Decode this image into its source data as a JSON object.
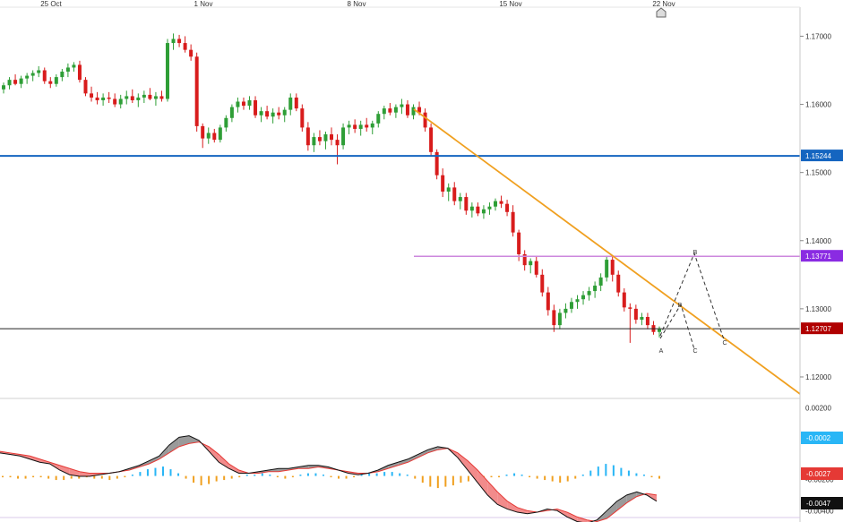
{
  "chart_data": {
    "type": "candlestick",
    "dates": [
      "25 Oct",
      "1 Nov",
      "8 Nov",
      "15 Nov",
      "22 Nov"
    ],
    "ylim": [
      1.1175,
      1.174
    ],
    "y_ticks": [
      "1.17000",
      "1.16000",
      "1.15000",
      "1.14000",
      "1.13000",
      "1.12000"
    ],
    "y_tick_values": [
      1.17,
      1.16,
      1.15,
      1.14,
      1.13,
      1.12
    ],
    "candles_ohlc": [
      [
        1.1622,
        1.1632,
        1.1616,
        1.1628
      ],
      [
        1.1628,
        1.164,
        1.1622,
        1.1636
      ],
      [
        1.1636,
        1.1644,
        1.1628,
        1.163
      ],
      [
        1.163,
        1.1642,
        1.1624,
        1.1638
      ],
      [
        1.1638,
        1.1646,
        1.163,
        1.1642
      ],
      [
        1.1642,
        1.165,
        1.1634,
        1.1646
      ],
      [
        1.1646,
        1.1656,
        1.164,
        1.165
      ],
      [
        1.165,
        1.1654,
        1.163,
        1.1634
      ],
      [
        1.1634,
        1.164,
        1.1624,
        1.163
      ],
      [
        1.163,
        1.1644,
        1.1626,
        1.164
      ],
      [
        1.164,
        1.1652,
        1.1634,
        1.1648
      ],
      [
        1.1648,
        1.166,
        1.164,
        1.1654
      ],
      [
        1.1654,
        1.1662,
        1.1648,
        1.1658
      ],
      [
        1.1658,
        1.1664,
        1.1632,
        1.1636
      ],
      [
        1.1636,
        1.164,
        1.1612,
        1.1616
      ],
      [
        1.1616,
        1.1626,
        1.1604,
        1.161
      ],
      [
        1.161,
        1.1618,
        1.16,
        1.1606
      ],
      [
        1.1606,
        1.1616,
        1.1598,
        1.161
      ],
      [
        1.161,
        1.1618,
        1.1602,
        1.1608
      ],
      [
        1.1608,
        1.1616,
        1.1596,
        1.16
      ],
      [
        1.16,
        1.1614,
        1.1594,
        1.1608
      ],
      [
        1.1608,
        1.162,
        1.16,
        1.1612
      ],
      [
        1.1612,
        1.1622,
        1.1602,
        1.1606
      ],
      [
        1.1606,
        1.1616,
        1.1596,
        1.161
      ],
      [
        1.161,
        1.162,
        1.1602,
        1.1614
      ],
      [
        1.1614,
        1.1624,
        1.1606,
        1.1608
      ],
      [
        1.1608,
        1.1618,
        1.1598,
        1.1612
      ],
      [
        1.1612,
        1.162,
        1.1604,
        1.1608
      ],
      [
        1.1608,
        1.1696,
        1.1604,
        1.169
      ],
      [
        1.169,
        1.1704,
        1.168,
        1.1696
      ],
      [
        1.1696,
        1.1702,
        1.1684,
        1.169
      ],
      [
        1.169,
        1.17,
        1.1676,
        1.168
      ],
      [
        1.168,
        1.1688,
        1.1664,
        1.167
      ],
      [
        1.167,
        1.1676,
        1.156,
        1.1568
      ],
      [
        1.1568,
        1.1572,
        1.1536,
        1.155
      ],
      [
        1.155,
        1.1566,
        1.1542,
        1.1558
      ],
      [
        1.1558,
        1.1564,
        1.1544,
        1.1548
      ],
      [
        1.1548,
        1.157,
        1.1544,
        1.1566
      ],
      [
        1.1566,
        1.1584,
        1.156,
        1.158
      ],
      [
        1.158,
        1.16,
        1.1574,
        1.1596
      ],
      [
        1.1596,
        1.161,
        1.1588,
        1.1604
      ],
      [
        1.1604,
        1.161,
        1.1592,
        1.1598
      ],
      [
        1.1598,
        1.1612,
        1.1592,
        1.1606
      ],
      [
        1.1606,
        1.1612,
        1.158,
        1.1584
      ],
      [
        1.1584,
        1.1596,
        1.1574,
        1.159
      ],
      [
        1.159,
        1.1598,
        1.1578,
        1.1582
      ],
      [
        1.1582,
        1.1594,
        1.1572,
        1.1588
      ],
      [
        1.1588,
        1.1596,
        1.1578,
        1.1584
      ],
      [
        1.1584,
        1.1596,
        1.1574,
        1.1592
      ],
      [
        1.1592,
        1.1616,
        1.1584,
        1.161
      ],
      [
        1.161,
        1.1616,
        1.159,
        1.1594
      ],
      [
        1.1594,
        1.16,
        1.156,
        1.1566
      ],
      [
        1.1566,
        1.1574,
        1.1532,
        1.154
      ],
      [
        1.154,
        1.1558,
        1.153,
        1.1552
      ],
      [
        1.1552,
        1.1562,
        1.154,
        1.1546
      ],
      [
        1.1546,
        1.156,
        1.1534,
        1.1556
      ],
      [
        1.1556,
        1.1566,
        1.154,
        1.1548
      ],
      [
        1.1548,
        1.1556,
        1.1512,
        1.154
      ],
      [
        1.154,
        1.1572,
        1.1534,
        1.1566
      ],
      [
        1.1566,
        1.1576,
        1.1556,
        1.157
      ],
      [
        1.157,
        1.1578,
        1.1558,
        1.1564
      ],
      [
        1.1564,
        1.1576,
        1.1554,
        1.157
      ],
      [
        1.157,
        1.158,
        1.156,
        1.1566
      ],
      [
        1.1566,
        1.1576,
        1.1556,
        1.1572
      ],
      [
        1.1572,
        1.159,
        1.1566,
        1.1586
      ],
      [
        1.1586,
        1.1598,
        1.1578,
        1.1594
      ],
      [
        1.1594,
        1.1602,
        1.1584,
        1.1588
      ],
      [
        1.1588,
        1.16,
        1.158,
        1.1596
      ],
      [
        1.1596,
        1.1608,
        1.1586,
        1.16
      ],
      [
        1.16,
        1.1606,
        1.158,
        1.1584
      ],
      [
        1.1584,
        1.16,
        1.1578,
        1.1596
      ],
      [
        1.1596,
        1.1604,
        1.1584,
        1.1588
      ],
      [
        1.1588,
        1.1594,
        1.156,
        1.1566
      ],
      [
        1.1566,
        1.1572,
        1.1524,
        1.153
      ],
      [
        1.153,
        1.1534,
        1.149,
        1.1496
      ],
      [
        1.1496,
        1.1506,
        1.1464,
        1.1472
      ],
      [
        1.1472,
        1.1484,
        1.1458,
        1.1478
      ],
      [
        1.1478,
        1.1486,
        1.1452,
        1.1458
      ],
      [
        1.1458,
        1.147,
        1.1446,
        1.1464
      ],
      [
        1.1464,
        1.147,
        1.1438,
        1.1444
      ],
      [
        1.1444,
        1.1456,
        1.1434,
        1.145
      ],
      [
        1.145,
        1.1456,
        1.1436,
        1.144
      ],
      [
        1.144,
        1.1452,
        1.1432,
        1.1446
      ],
      [
        1.1446,
        1.1456,
        1.1438,
        1.145
      ],
      [
        1.145,
        1.1462,
        1.1444,
        1.1458
      ],
      [
        1.1458,
        1.1466,
        1.1448,
        1.1454
      ],
      [
        1.1454,
        1.146,
        1.1436,
        1.1442
      ],
      [
        1.1442,
        1.1452,
        1.1406,
        1.1412
      ],
      [
        1.1412,
        1.1416,
        1.137,
        1.138
      ],
      [
        1.138,
        1.1386,
        1.1356,
        1.1364
      ],
      [
        1.1364,
        1.1374,
        1.1352,
        1.137
      ],
      [
        1.137,
        1.1378,
        1.1346,
        1.135
      ],
      [
        1.135,
        1.1358,
        1.1318,
        1.1324
      ],
      [
        1.1324,
        1.1332,
        1.129,
        1.1298
      ],
      [
        1.1298,
        1.1306,
        1.1266,
        1.1276
      ],
      [
        1.1276,
        1.13,
        1.127,
        1.1294
      ],
      [
        1.1294,
        1.1308,
        1.1286,
        1.13
      ],
      [
        1.13,
        1.1316,
        1.1294,
        1.131
      ],
      [
        1.131,
        1.132,
        1.13,
        1.1314
      ],
      [
        1.1314,
        1.1326,
        1.1306,
        1.132
      ],
      [
        1.132,
        1.1332,
        1.1312,
        1.1326
      ],
      [
        1.1326,
        1.134,
        1.1316,
        1.1334
      ],
      [
        1.1334,
        1.1352,
        1.1326,
        1.1346
      ],
      [
        1.1346,
        1.1378,
        1.134,
        1.1372
      ],
      [
        1.1372,
        1.1376,
        1.134,
        1.135
      ],
      [
        1.135,
        1.1356,
        1.1318,
        1.1324
      ],
      [
        1.1324,
        1.133,
        1.1296,
        1.1302
      ],
      [
        1.1302,
        1.1308,
        1.125,
        1.13
      ],
      [
        1.13,
        1.1306,
        1.1278,
        1.1284
      ],
      [
        1.1284,
        1.1294,
        1.1276,
        1.1288
      ],
      [
        1.1288,
        1.1294,
        1.127,
        1.1276
      ],
      [
        1.1276,
        1.1282,
        1.1262,
        1.1266
      ],
      [
        1.1266,
        1.1274,
        1.1258,
        1.127
      ]
    ],
    "levels": {
      "blue_line": {
        "value": 1.15244,
        "label": "1.15244",
        "color": "#1565c0"
      },
      "violet_line": {
        "value": 1.13771,
        "label": "1.13771",
        "color": "#8a2be2"
      },
      "current_price": {
        "value": 1.12707,
        "label": "1.12707",
        "color": "#b00000"
      }
    },
    "trendline": {
      "color": "#f0a020"
    },
    "wave_labels": [
      "B",
      "B",
      "A",
      "C",
      "C"
    ],
    "indicator": {
      "y_ticks": [
        "0.00200",
        "-0.00200",
        "-0.00400"
      ],
      "y_tick_values": [
        0.002,
        -0.002,
        -0.004
      ],
      "ylim": [
        -0.0049,
        0.0025
      ],
      "tags": [
        {
          "value": -0.0002,
          "label": "-0.0002",
          "color": "#29b6f6"
        },
        {
          "value": -0.0027,
          "label": "-0.0027",
          "color": "#e53935"
        },
        {
          "value": -0.0047,
          "label": "-0.0047",
          "color": "#111111"
        }
      ],
      "histogram": [
        -0.0001,
        -0.0001,
        -0.0002,
        -0.0002,
        -0.0001,
        -0.0001,
        -0.0002,
        -0.0003,
        -0.0003,
        -0.0002,
        -0.0002,
        -0.0001,
        -0.0002,
        -0.0002,
        -0.0003,
        -0.0002,
        -0.0001,
        0.0001,
        0.0003,
        0.0005,
        0.0006,
        0.0007,
        0.0005,
        0.0002,
        -0.0002,
        -0.0005,
        -0.0007,
        -0.0006,
        -0.0004,
        -0.0003,
        -0.0002,
        -0.0001,
        0.0001,
        0.0001,
        0.0002,
        0.0001,
        -0.0001,
        -0.0002,
        -0.0001,
        0.0001,
        0.0002,
        0.0002,
        0.0001,
        -0.0001,
        -0.0002,
        -0.0002,
        -0.0001,
        0.0001,
        0.0002,
        0.0002,
        0.0003,
        0.0003,
        0.0002,
        0.0001,
        -0.0002,
        -0.0005,
        -0.0008,
        -0.0009,
        -0.0008,
        -0.0007,
        -0.0005,
        -0.0004,
        -0.0003,
        -0.0002,
        -0.0001,
        -0.0001,
        0.0001,
        0.0002,
        0.0001,
        -0.0001,
        -0.0002,
        -0.0003,
        -0.0004,
        -0.0005,
        -0.0004,
        -0.0002,
        0.0001,
        0.0004,
        0.0007,
        0.0009,
        0.0008,
        0.0006,
        0.0004,
        0.0002,
        0.0001,
        -0.0001,
        -0.0002
      ],
      "fast": [
        -0.0003,
        -0.0004,
        -0.0005,
        -0.0007,
        -0.0009,
        -0.001,
        -0.0014,
        -0.0017,
        -0.0018,
        -0.0018,
        -0.0017,
        -0.0016,
        -0.0015,
        -0.0013,
        -0.0011,
        -0.0008,
        -0.0005,
        0.0002,
        0.0007,
        0.0008,
        0.0005,
        -0.0002,
        -0.0009,
        -0.0013,
        -0.0016,
        -0.0016,
        -0.0015,
        -0.0014,
        -0.0013,
        -0.0013,
        -0.0012,
        -0.0011,
        -0.0011,
        -0.0012,
        -0.0014,
        -0.0016,
        -0.0017,
        -0.0016,
        -0.0014,
        -0.0011,
        -0.0009,
        -0.0007,
        -0.0004,
        -0.0001,
        0.0001,
        0.0,
        -0.0006,
        -0.0014,
        -0.0022,
        -0.003,
        -0.0036,
        -0.0039,
        -0.0041,
        -0.0042,
        -0.0041,
        -0.0039,
        -0.004,
        -0.0044,
        -0.0047,
        -0.0048,
        -0.0046,
        -0.004,
        -0.0034,
        -0.003,
        -0.0028,
        -0.003,
        -0.0034
      ],
      "slow": [
        -0.0002,
        -0.0003,
        -0.0004,
        -0.0005,
        -0.0007,
        -0.0009,
        -0.0011,
        -0.0013,
        -0.0015,
        -0.0016,
        -0.0016,
        -0.0016,
        -0.0015,
        -0.0014,
        -0.0012,
        -0.001,
        -0.0007,
        -0.0003,
        0.0001,
        0.0003,
        0.0004,
        0.0001,
        -0.0004,
        -0.001,
        -0.0014,
        -0.0016,
        -0.0016,
        -0.0015,
        -0.0015,
        -0.0014,
        -0.0013,
        -0.0013,
        -0.0012,
        -0.0013,
        -0.0014,
        -0.0015,
        -0.0016,
        -0.0016,
        -0.0015,
        -0.0013,
        -0.0011,
        -0.0009,
        -0.0006,
        -0.0003,
        -0.0001,
        0.0,
        -0.0003,
        -0.0008,
        -0.0014,
        -0.0021,
        -0.0028,
        -0.0034,
        -0.0038,
        -0.004,
        -0.0041,
        -0.004,
        -0.0039,
        -0.0041,
        -0.0044,
        -0.0046,
        -0.0047,
        -0.0045,
        -0.004,
        -0.0035,
        -0.0031,
        -0.0029,
        -0.003
      ]
    }
  }
}
